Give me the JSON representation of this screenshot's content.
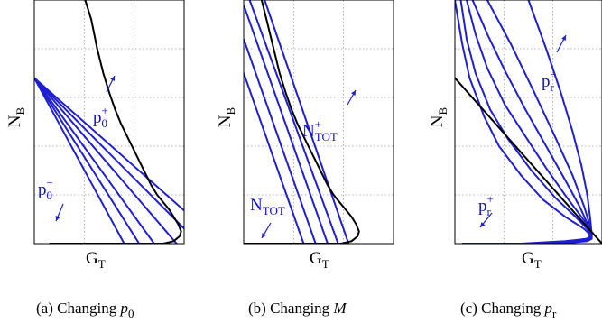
{
  "colors": {
    "blue": "#1f1fd1",
    "black": "#000000",
    "grid": "#9a9a9a"
  },
  "chart_data": [
    {
      "type": "line",
      "title": "",
      "xlabel": {
        "main": "G",
        "sub": "T"
      },
      "ylabel": {
        "main": "N",
        "sub": "B"
      },
      "ticks": "none",
      "grid": true,
      "caption": {
        "prefix": "(a) Changing ",
        "var": "p",
        "sub": "0"
      },
      "annotations": [
        {
          "text": "p",
          "sub": "0",
          "sup": "+"
        },
        {
          "text": "p",
          "sub": "0",
          "sup": "−"
        }
      ],
      "reference_curve": {
        "color": "black",
        "x": [
          0.34,
          0.38,
          0.42,
          0.46,
          0.5,
          0.54,
          0.58,
          0.62,
          0.66,
          0.7,
          0.74,
          0.78,
          0.82,
          0.86,
          0.9,
          0.93,
          0.96,
          0.98,
          0.97,
          0.93,
          0.86,
          0.6,
          0.3,
          0.1
        ],
        "y": [
          1.0,
          0.92,
          0.8,
          0.7,
          0.62,
          0.55,
          0.49,
          0.44,
          0.39,
          0.34,
          0.29,
          0.24,
          0.2,
          0.17,
          0.14,
          0.11,
          0.08,
          0.05,
          0.03,
          0.01,
          0.0,
          0.0,
          0.0,
          0.0
        ]
      },
      "series": [
        {
          "color": "blue",
          "x": [
            0.0,
            0.6
          ],
          "y": [
            0.68,
            0.0
          ]
        },
        {
          "color": "blue",
          "x": [
            0.0,
            0.7
          ],
          "y": [
            0.68,
            0.0
          ]
        },
        {
          "color": "blue",
          "x": [
            0.0,
            0.8
          ],
          "y": [
            0.68,
            0.0
          ]
        },
        {
          "color": "blue",
          "x": [
            0.0,
            0.95
          ],
          "y": [
            0.68,
            0.0
          ]
        },
        {
          "color": "blue",
          "x": [
            0.0,
            1.1
          ],
          "y": [
            0.68,
            0.0
          ]
        },
        {
          "color": "blue",
          "x": [
            0.0,
            1.25
          ],
          "y": [
            0.68,
            0.0
          ]
        }
      ]
    },
    {
      "type": "line",
      "title": "",
      "xlabel": {
        "main": "G",
        "sub": "T"
      },
      "ylabel": {
        "main": "N",
        "sub": "B"
      },
      "ticks": "none",
      "grid": true,
      "caption": {
        "prefix": "(b) Changing ",
        "var": "M",
        "sub": ""
      },
      "annotations": [
        {
          "text": "N",
          "sub": "TOT",
          "sup": "+"
        },
        {
          "text": "N",
          "sub": "TOT",
          "sup": "−"
        }
      ],
      "reference_curve": {
        "color": "black",
        "x": [
          0.12,
          0.16,
          0.2,
          0.24,
          0.28,
          0.32,
          0.36,
          0.4,
          0.44,
          0.48,
          0.52,
          0.56,
          0.6,
          0.64,
          0.68,
          0.72,
          0.75,
          0.77,
          0.76,
          0.72,
          0.65,
          0.4,
          0.15,
          0.0
        ],
        "y": [
          1.0,
          0.9,
          0.8,
          0.7,
          0.62,
          0.55,
          0.49,
          0.44,
          0.39,
          0.34,
          0.29,
          0.24,
          0.2,
          0.17,
          0.14,
          0.11,
          0.08,
          0.05,
          0.03,
          0.01,
          0.0,
          0.0,
          0.0,
          0.0
        ]
      },
      "series": [
        {
          "color": "blue",
          "x": [
            0.0,
            0.4
          ],
          "y": [
            0.7,
            0.0
          ]
        },
        {
          "color": "blue",
          "x": [
            0.0,
            0.48
          ],
          "y": [
            0.84,
            0.0
          ]
        },
        {
          "color": "blue",
          "x": [
            0.0,
            0.56
          ],
          "y": [
            0.98,
            0.0
          ]
        },
        {
          "color": "blue",
          "x": [
            0.04,
            0.63
          ],
          "y": [
            1.0,
            0.0
          ]
        },
        {
          "color": "blue",
          "x": [
            0.14,
            0.7
          ],
          "y": [
            1.0,
            0.0
          ]
        }
      ]
    },
    {
      "type": "line",
      "title": "",
      "xlabel": {
        "main": "G",
        "sub": "T"
      },
      "ylabel": {
        "main": "N",
        "sub": "B"
      },
      "ticks": "none",
      "grid": true,
      "caption": {
        "prefix": "(c) Changing ",
        "var": "p",
        "sub": "r"
      },
      "annotations": [
        {
          "text": "p",
          "sub": "r",
          "sup": "−"
        },
        {
          "text": "p",
          "sub": "r",
          "sup": "+"
        }
      ],
      "reference_curve": {
        "color": "black",
        "x": [
          0.0,
          1.0
        ],
        "y": [
          0.68,
          0.0
        ]
      },
      "series": [
        {
          "color": "blue",
          "x": [
            0.0,
            0.05,
            0.1,
            0.2,
            0.3,
            0.45,
            0.6,
            0.75,
            0.88,
            0.93,
            0.93,
            0.9,
            0.7,
            0.4,
            0.05
          ],
          "y": [
            1.0,
            0.82,
            0.68,
            0.52,
            0.4,
            0.28,
            0.18,
            0.11,
            0.06,
            0.03,
            0.02,
            0.01,
            0.0,
            0.0,
            0.0
          ]
        },
        {
          "color": "blue",
          "x": [
            0.04,
            0.08,
            0.14,
            0.24,
            0.36,
            0.52,
            0.68,
            0.82,
            0.9,
            0.93,
            0.92,
            0.85,
            0.6,
            0.3,
            0.05
          ],
          "y": [
            1.0,
            0.84,
            0.7,
            0.55,
            0.43,
            0.3,
            0.19,
            0.11,
            0.06,
            0.03,
            0.02,
            0.01,
            0.0,
            0.0,
            0.0
          ]
        },
        {
          "color": "blue",
          "x": [
            0.08,
            0.14,
            0.22,
            0.34,
            0.48,
            0.62,
            0.76,
            0.86,
            0.92,
            0.93,
            0.9,
            0.8,
            0.55,
            0.3,
            0.05
          ],
          "y": [
            1.0,
            0.86,
            0.72,
            0.57,
            0.44,
            0.31,
            0.19,
            0.11,
            0.06,
            0.03,
            0.02,
            0.01,
            0.0,
            0.0,
            0.0
          ]
        },
        {
          "color": "blue",
          "x": [
            0.12,
            0.22,
            0.34,
            0.48,
            0.62,
            0.75,
            0.85,
            0.91,
            0.93,
            0.9,
            0.8,
            0.55,
            0.3,
            0.05
          ],
          "y": [
            1.0,
            0.86,
            0.71,
            0.55,
            0.4,
            0.26,
            0.15,
            0.07,
            0.03,
            0.02,
            0.01,
            0.0,
            0.0,
            0.0
          ]
        },
        {
          "color": "blue",
          "x": [
            0.22,
            0.38,
            0.54,
            0.68,
            0.8,
            0.88,
            0.92,
            0.93,
            0.9,
            0.78,
            0.5,
            0.25,
            0.05
          ],
          "y": [
            1.0,
            0.82,
            0.62,
            0.44,
            0.28,
            0.15,
            0.07,
            0.03,
            0.02,
            0.01,
            0.0,
            0.0,
            0.0
          ]
        },
        {
          "color": "blue",
          "x": [
            0.5,
            0.62,
            0.72,
            0.8,
            0.86,
            0.9,
            0.92,
            0.93,
            0.9,
            0.75,
            0.45,
            0.2,
            0.05
          ],
          "y": [
            1.0,
            0.8,
            0.62,
            0.46,
            0.32,
            0.2,
            0.1,
            0.04,
            0.02,
            0.01,
            0.0,
            0.0,
            0.0
          ]
        }
      ]
    }
  ]
}
